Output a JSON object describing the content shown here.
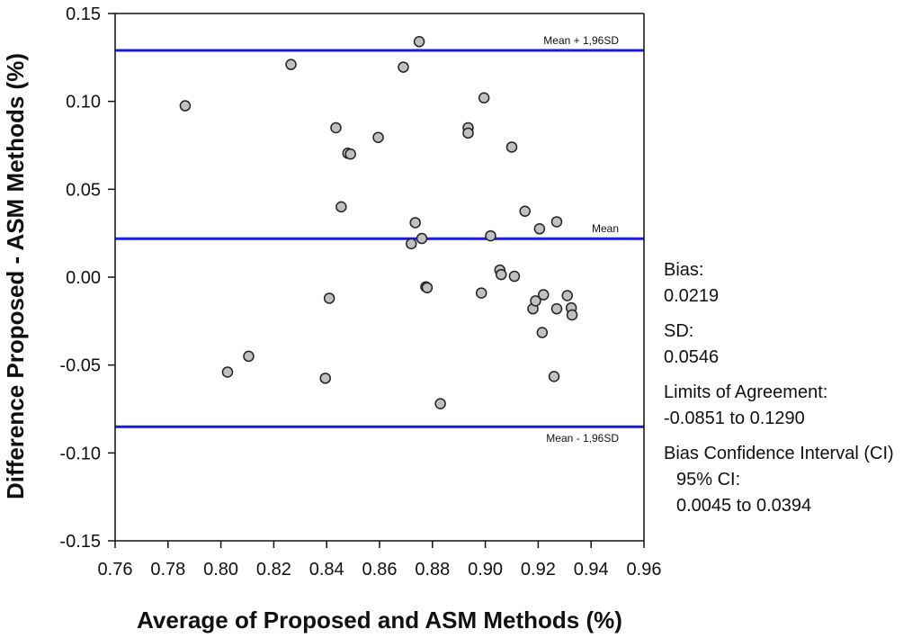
{
  "chart_data": {
    "type": "scatter",
    "title": "",
    "xlabel": "Average of Proposed and ASM Methods (%)",
    "ylabel": "Difference Proposed - ASM Methods (%)",
    "xlim": [
      0.76,
      0.96
    ],
    "ylim": [
      -0.15,
      0.15
    ],
    "xticks": [
      0.76,
      0.78,
      0.8,
      0.82,
      0.84,
      0.86,
      0.88,
      0.9,
      0.92,
      0.94,
      0.96
    ],
    "yticks": [
      -0.15,
      -0.1,
      -0.05,
      0.0,
      0.05,
      0.1,
      0.15
    ],
    "xtick_labels": [
      "0.76",
      "0.78",
      "0.80",
      "0.82",
      "0.84",
      "0.86",
      "0.88",
      "0.90",
      "0.92",
      "0.94",
      "0.96"
    ],
    "ytick_labels": [
      "-0.15",
      "-0.10",
      "-0.05",
      "0.00",
      "0.05",
      "0.10",
      "0.15"
    ],
    "grid": false,
    "points": [
      {
        "x": 0.7865,
        "y": 0.0975
      },
      {
        "x": 0.8025,
        "y": -0.054
      },
      {
        "x": 0.8105,
        "y": -0.045
      },
      {
        "x": 0.8265,
        "y": 0.121
      },
      {
        "x": 0.8395,
        "y": -0.0575
      },
      {
        "x": 0.841,
        "y": -0.012
      },
      {
        "x": 0.8435,
        "y": 0.085
      },
      {
        "x": 0.8455,
        "y": 0.04
      },
      {
        "x": 0.848,
        "y": 0.0705
      },
      {
        "x": 0.849,
        "y": 0.07
      },
      {
        "x": 0.8595,
        "y": 0.0795
      },
      {
        "x": 0.869,
        "y": 0.1195
      },
      {
        "x": 0.872,
        "y": 0.019
      },
      {
        "x": 0.8735,
        "y": 0.031
      },
      {
        "x": 0.875,
        "y": 0.134
      },
      {
        "x": 0.876,
        "y": 0.022
      },
      {
        "x": 0.8775,
        "y": -0.0055
      },
      {
        "x": 0.878,
        "y": -0.006
      },
      {
        "x": 0.883,
        "y": -0.072
      },
      {
        "x": 0.8935,
        "y": 0.085
      },
      {
        "x": 0.8935,
        "y": 0.082
      },
      {
        "x": 0.8985,
        "y": -0.009
      },
      {
        "x": 0.8995,
        "y": 0.102
      },
      {
        "x": 0.902,
        "y": 0.0235
      },
      {
        "x": 0.9055,
        "y": 0.004
      },
      {
        "x": 0.906,
        "y": 0.0015
      },
      {
        "x": 0.91,
        "y": 0.074
      },
      {
        "x": 0.911,
        "y": 0.0005
      },
      {
        "x": 0.915,
        "y": 0.0375
      },
      {
        "x": 0.918,
        "y": -0.018
      },
      {
        "x": 0.919,
        "y": -0.0135
      },
      {
        "x": 0.9205,
        "y": 0.0275
      },
      {
        "x": 0.9215,
        "y": -0.0315
      },
      {
        "x": 0.922,
        "y": -0.01
      },
      {
        "x": 0.926,
        "y": -0.0565
      },
      {
        "x": 0.927,
        "y": 0.0315
      },
      {
        "x": 0.927,
        "y": -0.018
      },
      {
        "x": 0.931,
        "y": -0.0105
      },
      {
        "x": 0.9325,
        "y": -0.0175
      },
      {
        "x": 0.9328,
        "y": -0.0215
      }
    ],
    "reference_lines": [
      {
        "name": "upper-limit",
        "label": "Mean + 1,96SD",
        "y": 0.129
      },
      {
        "name": "mean",
        "label": "Mean",
        "y": 0.0219
      },
      {
        "name": "lower-limit",
        "label": "Mean - 1,96SD",
        "y": -0.0851
      }
    ],
    "colors": {
      "reference_line": "#1a1adb",
      "point_fill": "#c0c0c0",
      "point_stroke": "#222222",
      "axis": "#111111"
    }
  },
  "stats": {
    "bias_label": "Bias:",
    "bias_value": "0.0219",
    "sd_label": "SD:",
    "sd_value": "0.0546",
    "loa_label": "Limits of Agreement:",
    "loa_value": "-0.0851 to 0.1290",
    "ci_label": "Bias Confidence Interval (CI)",
    "ci95_label": "95% CI:",
    "ci95_value": "0.0045 to 0.0394"
  }
}
